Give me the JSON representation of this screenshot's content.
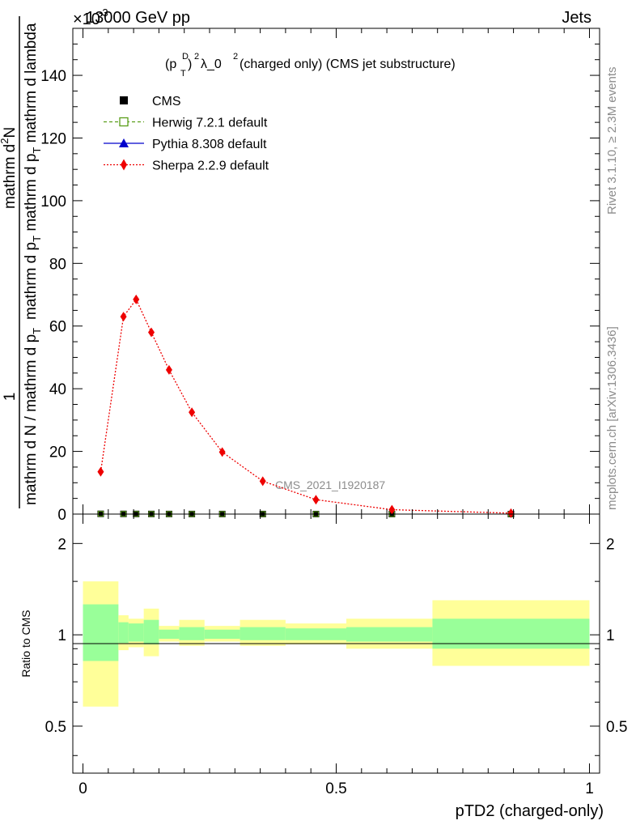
{
  "header": {
    "multiplier": "×10",
    "multiplier_exp": "-3",
    "energy": "13000 GeV pp",
    "category": "Jets"
  },
  "title": {
    "prefix": "(p",
    "sup_D": "D",
    "sub_T": "T",
    "sup_2a": "2",
    "mid": " λ_0",
    "sup_2b": "2",
    "suffix": " (charged only) (CMS jet substructure)"
  },
  "side_labels": {
    "rivet": "Rivet 3.1.10, ≥ 2.3M events",
    "mcplots": "mcplots.cern.ch [arXiv:1306.3436]"
  },
  "watermark": "CMS_2021_I1920187",
  "y_label": {
    "numerator_one": "1",
    "denominator": "mathrm d N / mathrm d p",
    "denominator_sub": "T",
    "frac_num": "mathrm d",
    "frac_num_sup": "2",
    "frac_num_tail": "N",
    "frac_den": "mathrm d p",
    "frac_den_sub": "T",
    "frac_den_tail": " mathrm d p",
    "frac_den_sub2": "T",
    "frac_den_tail2": " mathrm d lambda"
  },
  "ratio_label": "Ratio to CMS",
  "x_label": "pTD2 (charged-only)",
  "legend": [
    {
      "name": "CMS",
      "color": "#000000",
      "marker": "square-filled",
      "line": "none"
    },
    {
      "name": "Herwig 7.2.1 default",
      "color": "#5a9e1a",
      "marker": "square-open",
      "line": "dashed"
    },
    {
      "name": "Pythia 8.308 default",
      "color": "#0000cc",
      "marker": "triangle",
      "line": "solid"
    },
    {
      "name": "Sherpa 2.2.9 default",
      "color": "#ee0000",
      "marker": "diamond",
      "line": "dotted"
    }
  ],
  "colors": {
    "band_inner": "#99ff99",
    "band_outer": "#ffff99",
    "sherpa": "#ee0000"
  },
  "chart_data": {
    "type": "line",
    "x_ticks": [
      "0",
      "0.5",
      "1"
    ],
    "x_range": [
      -0.02,
      1.02
    ],
    "main_y_ticks": [
      "0",
      "20",
      "40",
      "60",
      "80",
      "100",
      "120",
      "140"
    ],
    "main_y_range": [
      0,
      155
    ],
    "ratio_y_ticks": [
      "0.5",
      "1",
      "2"
    ],
    "ratio_y_range": [
      0.35,
      2.5
    ],
    "ratio_scale": "log",
    "cms": {
      "x": [
        0.035,
        0.08,
        0.105,
        0.135,
        0.17,
        0.215,
        0.275,
        0.355,
        0.46,
        0.61,
        0.845
      ],
      "y": [
        0.08,
        0.06,
        0.05,
        0.04,
        0.03,
        0.025,
        0.02,
        0.015,
        0.01,
        0.005,
        0.002
      ]
    },
    "sherpa": {
      "x": [
        0.035,
        0.08,
        0.105,
        0.135,
        0.17,
        0.215,
        0.275,
        0.355,
        0.46,
        0.61,
        0.845
      ],
      "y": [
        13.5,
        63,
        68.5,
        58,
        46,
        32.5,
        19.8,
        10.5,
        4.6,
        1.4,
        0.3
      ]
    },
    "ratio_bands": [
      {
        "x0": 0.0,
        "x1": 0.07,
        "inner_lo": 0.82,
        "inner_hi": 1.26,
        "outer_lo": 0.58,
        "outer_hi": 1.5
      },
      {
        "x0": 0.07,
        "x1": 0.09,
        "inner_lo": 0.94,
        "inner_hi": 1.1,
        "outer_lo": 0.89,
        "outer_hi": 1.16
      },
      {
        "x0": 0.09,
        "x1": 0.12,
        "inner_lo": 0.95,
        "inner_hi": 1.09,
        "outer_lo": 0.91,
        "outer_hi": 1.13
      },
      {
        "x0": 0.12,
        "x1": 0.15,
        "inner_lo": 0.93,
        "inner_hi": 1.12,
        "outer_lo": 0.85,
        "outer_hi": 1.22
      },
      {
        "x0": 0.15,
        "x1": 0.19,
        "inner_lo": 0.97,
        "inner_hi": 1.04,
        "outer_lo": 0.95,
        "outer_hi": 1.07
      },
      {
        "x0": 0.19,
        "x1": 0.24,
        "inner_lo": 0.96,
        "inner_hi": 1.06,
        "outer_lo": 0.92,
        "outer_hi": 1.12
      },
      {
        "x0": 0.24,
        "x1": 0.31,
        "inner_lo": 0.97,
        "inner_hi": 1.04,
        "outer_lo": 0.95,
        "outer_hi": 1.07
      },
      {
        "x0": 0.31,
        "x1": 0.4,
        "inner_lo": 0.96,
        "inner_hi": 1.06,
        "outer_lo": 0.92,
        "outer_hi": 1.12
      },
      {
        "x0": 0.4,
        "x1": 0.52,
        "inner_lo": 0.96,
        "inner_hi": 1.05,
        "outer_lo": 0.93,
        "outer_hi": 1.09
      },
      {
        "x0": 0.52,
        "x1": 0.69,
        "inner_lo": 0.95,
        "inner_hi": 1.06,
        "outer_lo": 0.9,
        "outer_hi": 1.13
      },
      {
        "x0": 0.69,
        "x1": 1.0,
        "inner_lo": 0.9,
        "inner_hi": 1.13,
        "outer_lo": 0.79,
        "outer_hi": 1.3
      }
    ]
  }
}
